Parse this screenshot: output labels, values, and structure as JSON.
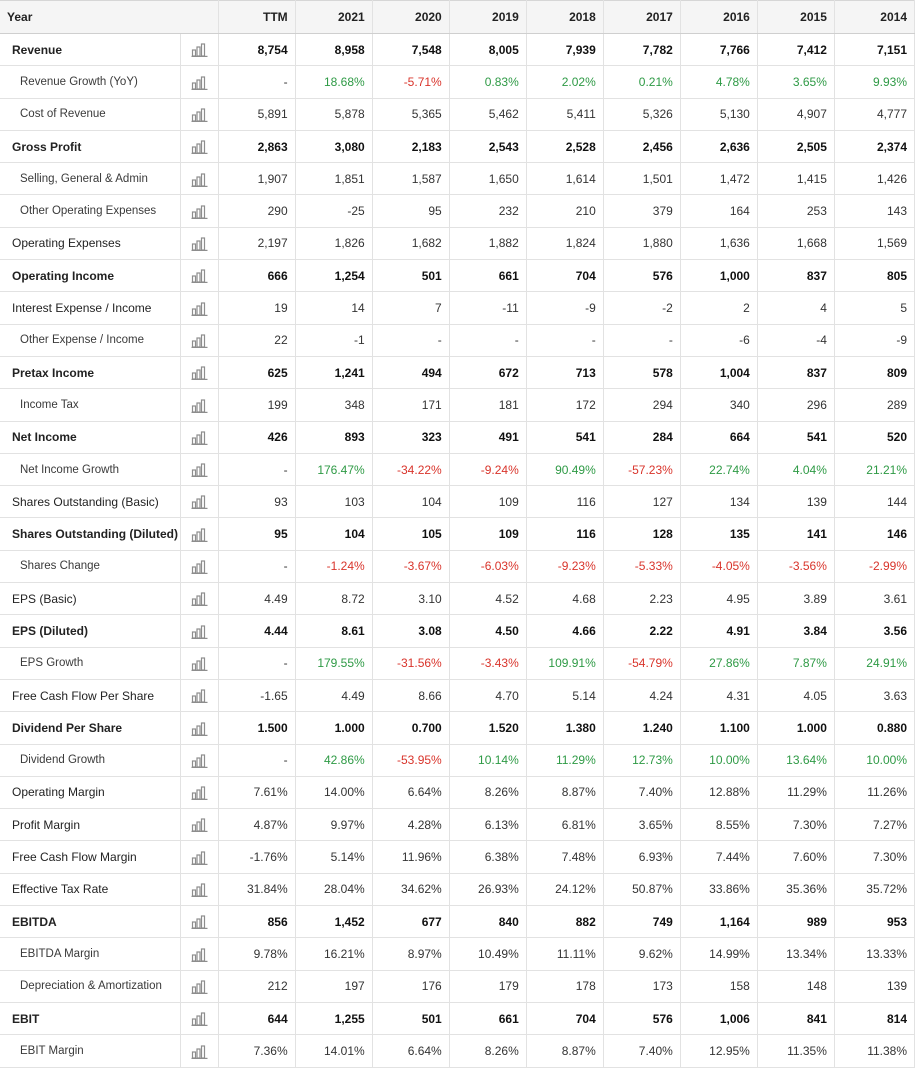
{
  "colors": {
    "positive": "#2e9a45",
    "negative": "#d9342b",
    "icon": "#8d8d8d",
    "header_bg": "#f5f5f5",
    "border": "#e2e2e2"
  },
  "icon_name": "bar-chart-icon",
  "header": {
    "label": "Year",
    "columns": [
      "TTM",
      "2021",
      "2020",
      "2019",
      "2018",
      "2017",
      "2016",
      "2015",
      "2014"
    ]
  },
  "rows": [
    {
      "label": "Revenue",
      "bold": true,
      "indent": false,
      "values": [
        "8,754",
        "8,958",
        "7,548",
        "8,005",
        "7,939",
        "7,782",
        "7,766",
        "7,412",
        "7,151"
      ]
    },
    {
      "label": "Revenue Growth (YoY)",
      "bold": false,
      "indent": true,
      "signed": true,
      "values": [
        "-",
        "18.68%",
        "-5.71%",
        "0.83%",
        "2.02%",
        "0.21%",
        "4.78%",
        "3.65%",
        "9.93%"
      ]
    },
    {
      "label": "Cost of Revenue",
      "bold": false,
      "indent": true,
      "values": [
        "5,891",
        "5,878",
        "5,365",
        "5,462",
        "5,411",
        "5,326",
        "5,130",
        "4,907",
        "4,777"
      ]
    },
    {
      "label": "Gross Profit",
      "bold": true,
      "indent": false,
      "values": [
        "2,863",
        "3,080",
        "2,183",
        "2,543",
        "2,528",
        "2,456",
        "2,636",
        "2,505",
        "2,374"
      ]
    },
    {
      "label": "Selling, General & Admin",
      "bold": false,
      "indent": true,
      "values": [
        "1,907",
        "1,851",
        "1,587",
        "1,650",
        "1,614",
        "1,501",
        "1,472",
        "1,415",
        "1,426"
      ]
    },
    {
      "label": "Other Operating Expenses",
      "bold": false,
      "indent": true,
      "values": [
        "290",
        "-25",
        "95",
        "232",
        "210",
        "379",
        "164",
        "253",
        "143"
      ]
    },
    {
      "label": "Operating Expenses",
      "bold": false,
      "indent": false,
      "values": [
        "2,197",
        "1,826",
        "1,682",
        "1,882",
        "1,824",
        "1,880",
        "1,636",
        "1,668",
        "1,569"
      ]
    },
    {
      "label": "Operating Income",
      "bold": true,
      "indent": false,
      "values": [
        "666",
        "1,254",
        "501",
        "661",
        "704",
        "576",
        "1,000",
        "837",
        "805"
      ]
    },
    {
      "label": "Interest Expense / Income",
      "bold": false,
      "indent": false,
      "values": [
        "19",
        "14",
        "7",
        "-11",
        "-9",
        "-2",
        "2",
        "4",
        "5"
      ]
    },
    {
      "label": "Other Expense / Income",
      "bold": false,
      "indent": true,
      "values": [
        "22",
        "-1",
        "-",
        "-",
        "-",
        "-",
        "-6",
        "-4",
        "-9"
      ]
    },
    {
      "label": "Pretax Income",
      "bold": true,
      "indent": false,
      "values": [
        "625",
        "1,241",
        "494",
        "672",
        "713",
        "578",
        "1,004",
        "837",
        "809"
      ]
    },
    {
      "label": "Income Tax",
      "bold": false,
      "indent": true,
      "values": [
        "199",
        "348",
        "171",
        "181",
        "172",
        "294",
        "340",
        "296",
        "289"
      ]
    },
    {
      "label": "Net Income",
      "bold": true,
      "indent": false,
      "values": [
        "426",
        "893",
        "323",
        "491",
        "541",
        "284",
        "664",
        "541",
        "520"
      ]
    },
    {
      "label": "Net Income Growth",
      "bold": false,
      "indent": true,
      "signed": true,
      "values": [
        "-",
        "176.47%",
        "-34.22%",
        "-9.24%",
        "90.49%",
        "-57.23%",
        "22.74%",
        "4.04%",
        "21.21%"
      ]
    },
    {
      "label": "Shares Outstanding (Basic)",
      "bold": false,
      "indent": false,
      "values": [
        "93",
        "103",
        "104",
        "109",
        "116",
        "127",
        "134",
        "139",
        "144"
      ]
    },
    {
      "label": "Shares Outstanding (Diluted)",
      "bold": true,
      "indent": false,
      "values": [
        "95",
        "104",
        "105",
        "109",
        "116",
        "128",
        "135",
        "141",
        "146"
      ]
    },
    {
      "label": "Shares Change",
      "bold": false,
      "indent": true,
      "signed": true,
      "values": [
        "-",
        "-1.24%",
        "-3.67%",
        "-6.03%",
        "-9.23%",
        "-5.33%",
        "-4.05%",
        "-3.56%",
        "-2.99%"
      ]
    },
    {
      "label": "EPS (Basic)",
      "bold": false,
      "indent": false,
      "values": [
        "4.49",
        "8.72",
        "3.10",
        "4.52",
        "4.68",
        "2.23",
        "4.95",
        "3.89",
        "3.61"
      ]
    },
    {
      "label": "EPS (Diluted)",
      "bold": true,
      "indent": false,
      "values": [
        "4.44",
        "8.61",
        "3.08",
        "4.50",
        "4.66",
        "2.22",
        "4.91",
        "3.84",
        "3.56"
      ]
    },
    {
      "label": "EPS Growth",
      "bold": false,
      "indent": true,
      "signed": true,
      "values": [
        "-",
        "179.55%",
        "-31.56%",
        "-3.43%",
        "109.91%",
        "-54.79%",
        "27.86%",
        "7.87%",
        "24.91%"
      ]
    },
    {
      "label": "Free Cash Flow Per Share",
      "bold": false,
      "indent": false,
      "values": [
        "-1.65",
        "4.49",
        "8.66",
        "4.70",
        "5.14",
        "4.24",
        "4.31",
        "4.05",
        "3.63"
      ]
    },
    {
      "label": "Dividend Per Share",
      "bold": true,
      "indent": false,
      "values": [
        "1.500",
        "1.000",
        "0.700",
        "1.520",
        "1.380",
        "1.240",
        "1.100",
        "1.000",
        "0.880"
      ]
    },
    {
      "label": "Dividend Growth",
      "bold": false,
      "indent": true,
      "signed": true,
      "values": [
        "-",
        "42.86%",
        "-53.95%",
        "10.14%",
        "11.29%",
        "12.73%",
        "10.00%",
        "13.64%",
        "10.00%"
      ]
    },
    {
      "label": "Operating Margin",
      "bold": false,
      "indent": false,
      "values": [
        "7.61%",
        "14.00%",
        "6.64%",
        "8.26%",
        "8.87%",
        "7.40%",
        "12.88%",
        "11.29%",
        "11.26%"
      ]
    },
    {
      "label": "Profit Margin",
      "bold": false,
      "indent": false,
      "values": [
        "4.87%",
        "9.97%",
        "4.28%",
        "6.13%",
        "6.81%",
        "3.65%",
        "8.55%",
        "7.30%",
        "7.27%"
      ]
    },
    {
      "label": "Free Cash Flow Margin",
      "bold": false,
      "indent": false,
      "values": [
        "-1.76%",
        "5.14%",
        "11.96%",
        "6.38%",
        "7.48%",
        "6.93%",
        "7.44%",
        "7.60%",
        "7.30%"
      ]
    },
    {
      "label": "Effective Tax Rate",
      "bold": false,
      "indent": false,
      "values": [
        "31.84%",
        "28.04%",
        "34.62%",
        "26.93%",
        "24.12%",
        "50.87%",
        "33.86%",
        "35.36%",
        "35.72%"
      ]
    },
    {
      "label": "EBITDA",
      "bold": true,
      "indent": false,
      "values": [
        "856",
        "1,452",
        "677",
        "840",
        "882",
        "749",
        "1,164",
        "989",
        "953"
      ]
    },
    {
      "label": "EBITDA Margin",
      "bold": false,
      "indent": true,
      "values": [
        "9.78%",
        "16.21%",
        "8.97%",
        "10.49%",
        "11.11%",
        "9.62%",
        "14.99%",
        "13.34%",
        "13.33%"
      ]
    },
    {
      "label": "Depreciation & Amortization",
      "bold": false,
      "indent": true,
      "values": [
        "212",
        "197",
        "176",
        "179",
        "178",
        "173",
        "158",
        "148",
        "139"
      ]
    },
    {
      "label": "EBIT",
      "bold": true,
      "indent": false,
      "values": [
        "644",
        "1,255",
        "501",
        "661",
        "704",
        "576",
        "1,006",
        "841",
        "814"
      ]
    },
    {
      "label": "EBIT Margin",
      "bold": false,
      "indent": true,
      "values": [
        "7.36%",
        "14.01%",
        "6.64%",
        "8.26%",
        "8.87%",
        "7.40%",
        "12.95%",
        "11.35%",
        "11.38%"
      ]
    }
  ]
}
